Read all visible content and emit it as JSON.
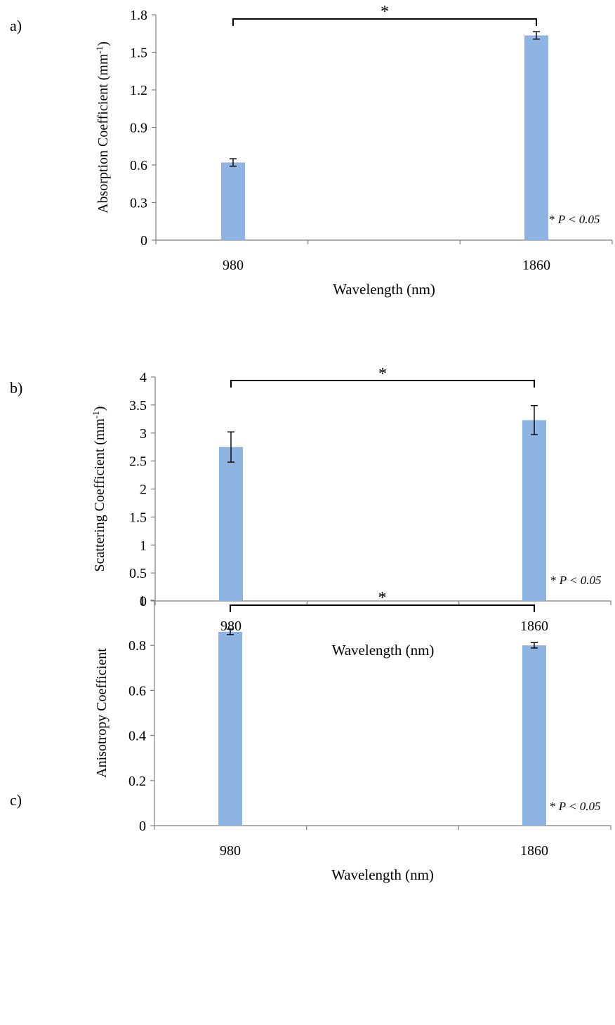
{
  "chart_data": [
    {
      "type": "bar",
      "panel_label": "a)",
      "ylabel_main": "Absorption Coefficient (mm",
      "ylabel_sup": "-1",
      "ylabel_close": ")",
      "xlabel": "Wavelength (nm)",
      "categories": [
        "980",
        "1860"
      ],
      "values": [
        0.62,
        1.635
      ],
      "errors": [
        0.03,
        0.03
      ],
      "ylim": [
        0,
        1.8
      ],
      "yticks": [
        "0",
        "0.3",
        "0.6",
        "0.9",
        "1.2",
        "1.5",
        "1.8"
      ],
      "significance_marker": "*",
      "p_note": {
        "star": "* ",
        "text": "P < 0.05"
      },
      "bar_color": "#8eb4e3"
    },
    {
      "type": "bar",
      "panel_label": "b)",
      "ylabel_main": "Scattering Coefficient (mm",
      "ylabel_sup": "-1",
      "ylabel_close": ")",
      "xlabel": "Wavelength (nm)",
      "categories": [
        "980",
        "1860"
      ],
      "values": [
        2.75,
        3.23
      ],
      "errors": [
        0.27,
        0.26
      ],
      "ylim": [
        0,
        4
      ],
      "yticks": [
        "0",
        "0.5",
        "1",
        "1.5",
        "2",
        "2.5",
        "3",
        "3.5",
        "4"
      ],
      "significance_marker": "*",
      "p_note": {
        "star": "* ",
        "text": "P < 0.05"
      },
      "bar_color": "#8eb4e3"
    },
    {
      "type": "bar",
      "panel_label": "c)",
      "ylabel_main": "Anisotropy Coefficient",
      "ylabel_sup": "",
      "ylabel_close": "",
      "xlabel": "Wavelength (nm)",
      "categories": [
        "980",
        "1860"
      ],
      "values": [
        0.86,
        0.8
      ],
      "errors": [
        0.012,
        0.012
      ],
      "ylim": [
        0,
        1
      ],
      "yticks": [
        "0",
        "0.2",
        "0.4",
        "0.6",
        "0.8",
        "1"
      ],
      "significance_marker": "*",
      "p_note": {
        "star": "* ",
        "text": "P < 0.05"
      },
      "bar_color": "#8eb4e3"
    }
  ]
}
